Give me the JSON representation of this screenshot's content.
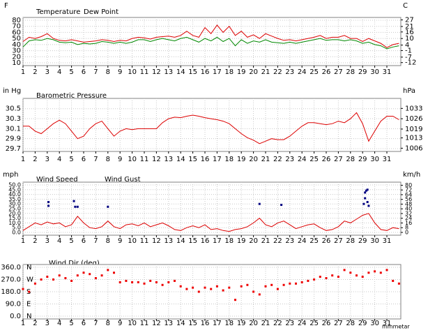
{
  "chart_data": [
    {
      "type": "line",
      "ylabel": "F",
      "y2label": "C",
      "x": [
        1,
        1.5,
        2,
        2.5,
        3,
        3.5,
        4,
        4.5,
        5,
        5.5,
        6,
        6.5,
        7,
        7.5,
        8,
        8.5,
        9,
        9.5,
        10,
        10.5,
        11,
        11.5,
        12,
        12.5,
        13,
        13.5,
        14,
        14.5,
        15,
        15.5,
        16,
        16.5,
        17,
        17.5,
        18,
        18.5,
        19,
        19.5,
        20,
        20.5,
        21,
        21.5,
        22,
        22.5,
        23,
        23.5,
        24,
        24.5,
        25,
        25.5,
        26,
        26.5,
        27,
        27.5,
        28,
        28.5,
        29,
        29.5,
        30,
        30.5,
        31,
        31.5,
        32
      ],
      "series": [
        {
          "name": "Temperature",
          "color": "#dd0000",
          "values": [
            45,
            52,
            50,
            53,
            58,
            50,
            47,
            46,
            48,
            46,
            44,
            45,
            46,
            48,
            47,
            45,
            47,
            46,
            50,
            52,
            51,
            49,
            52,
            53,
            54,
            52,
            55,
            62,
            55,
            52,
            68,
            58,
            72,
            60,
            70,
            55,
            62,
            52,
            56,
            50,
            58,
            54,
            50,
            47,
            48,
            46,
            48,
            50,
            52,
            55,
            50,
            52,
            52,
            55,
            50,
            50,
            45,
            50,
            46,
            42,
            35,
            40,
            42
          ]
        },
        {
          "name": "Dew Point",
          "color": "#008800",
          "values": [
            36,
            46,
            48,
            47,
            50,
            48,
            44,
            43,
            44,
            40,
            42,
            41,
            42,
            45,
            44,
            42,
            44,
            42,
            44,
            48,
            48,
            45,
            48,
            50,
            48,
            46,
            50,
            52,
            48,
            44,
            50,
            46,
            52,
            45,
            50,
            38,
            48,
            42,
            46,
            44,
            48,
            44,
            43,
            42,
            44,
            42,
            44,
            46,
            48,
            50,
            47,
            48,
            48,
            46,
            48,
            46,
            42,
            44,
            40,
            38,
            33,
            36,
            38
          ]
        }
      ],
      "xlim": [
        1,
        32.15
      ],
      "xticks": [
        1,
        2,
        3,
        4,
        5,
        6,
        7,
        8,
        9,
        10,
        11,
        12,
        13,
        14,
        15,
        16,
        17,
        18,
        19,
        20,
        21,
        22,
        23,
        24,
        25,
        26,
        27,
        28,
        29,
        30,
        31
      ],
      "ylim": [
        10,
        80
      ],
      "yticks": [
        80,
        70,
        60,
        50,
        40,
        30,
        20,
        10
      ],
      "y2lim": [
        -12.2,
        26.7
      ],
      "y2ticks": [
        27,
        21,
        16,
        10,
        4,
        -1,
        -7,
        -12
      ],
      "grid": true
    },
    {
      "type": "line",
      "title": "Barometric Pressure",
      "ylabel": "in Hg",
      "y2label": "hPa",
      "x": [
        1,
        1.5,
        2,
        2.5,
        3,
        3.5,
        4,
        4.5,
        5,
        5.5,
        6,
        6.5,
        7,
        7.5,
        8,
        8.5,
        9,
        9.5,
        10,
        10.5,
        11,
        11.5,
        12,
        12.5,
        13,
        13.5,
        14,
        14.5,
        15,
        15.5,
        16,
        16.5,
        17,
        17.5,
        18,
        18.5,
        19,
        19.5,
        20,
        20.5,
        21,
        21.5,
        22,
        22.5,
        23,
        23.5,
        24,
        24.5,
        25,
        25.5,
        26,
        26.5,
        27,
        27.5,
        28,
        28.5,
        29,
        29.5,
        30,
        30.5,
        31,
        31.5,
        32
      ],
      "series": [
        {
          "color": "#dd0000",
          "values": [
            30.15,
            30.15,
            30.05,
            30.0,
            30.1,
            30.2,
            30.27,
            30.2,
            30.05,
            29.9,
            29.95,
            30.1,
            30.2,
            30.25,
            30.1,
            29.95,
            30.05,
            30.1,
            30.08,
            30.1,
            30.1,
            30.1,
            30.1,
            30.22,
            30.3,
            30.33,
            30.32,
            30.35,
            30.37,
            30.35,
            30.32,
            30.3,
            30.28,
            30.25,
            30.2,
            30.1,
            30.0,
            29.92,
            29.87,
            29.8,
            29.85,
            29.9,
            29.88,
            29.88,
            29.95,
            30.05,
            30.15,
            30.22,
            30.22,
            30.2,
            30.18,
            30.2,
            30.25,
            30.22,
            30.3,
            30.42,
            30.2,
            29.85,
            30.05,
            30.25,
            30.35,
            30.35,
            30.28
          ]
        }
      ],
      "xlim": [
        1,
        32.15
      ],
      "xticks": [
        1,
        2,
        3,
        4,
        5,
        6,
        7,
        8,
        9,
        10,
        11,
        12,
        13,
        14,
        15,
        16,
        17,
        18,
        19,
        20,
        21,
        22,
        23,
        24,
        25,
        26,
        27,
        28,
        29,
        30,
        31
      ],
      "ylim": [
        29.7,
        30.65
      ],
      "yticks": [
        30.5,
        30.3,
        30.1,
        29.9,
        29.7
      ],
      "y2lim": [
        1005.7,
        1037.9
      ],
      "y2ticks": [
        1033,
        1026,
        1019,
        1013,
        1006
      ],
      "grid": true
    },
    {
      "type": "line",
      "ylabel": "mph",
      "y2label": "km/h",
      "x": [
        1,
        1.5,
        2,
        2.5,
        3,
        3.5,
        4,
        4.5,
        5,
        5.5,
        6,
        6.5,
        7,
        7.5,
        8,
        8.5,
        9,
        9.5,
        10,
        10.5,
        11,
        11.5,
        12,
        12.5,
        13,
        13.5,
        14,
        14.5,
        15,
        15.5,
        16,
        16.5,
        17,
        17.5,
        18,
        18.5,
        19,
        19.5,
        20,
        20.5,
        21,
        21.5,
        22,
        22.5,
        23,
        23.5,
        24,
        24.5,
        25,
        25.5,
        26,
        26.5,
        27,
        27.5,
        28,
        28.5,
        29,
        29.5,
        30,
        30.5,
        31,
        31.5,
        32
      ],
      "series": [
        {
          "name": "Wind Speed",
          "color": "#dd0000",
          "values": [
            2,
            6,
            10,
            8,
            11,
            9,
            10,
            6,
            8,
            17,
            10,
            5,
            4,
            6,
            12,
            6,
            4,
            8,
            9,
            7,
            10,
            6,
            8,
            10,
            7,
            3,
            2,
            5,
            7,
            5,
            8,
            3,
            4,
            2,
            1,
            3,
            4,
            6,
            10,
            15,
            8,
            6,
            10,
            12,
            8,
            4,
            6,
            8,
            9,
            5,
            2,
            3,
            6,
            12,
            10,
            14,
            18,
            20,
            10,
            3,
            2,
            5,
            4
          ]
        },
        {
          "name": "Wind Gust",
          "color": "#000080",
          "type": "scatter",
          "x": [
            3.1,
            3.1,
            5.2,
            5.3,
            5.5,
            8,
            20.5,
            22.3,
            29.2,
            29.3,
            29.4,
            29.2,
            29.1,
            29.4,
            29.5
          ],
          "values": [
            32,
            28,
            33,
            27,
            27,
            27,
            30,
            29,
            42,
            44,
            45,
            36,
            30,
            32,
            28
          ]
        }
      ],
      "xlim": [
        1,
        32.15
      ],
      "xticks": [
        1,
        2,
        3,
        4,
        5,
        6,
        7,
        8,
        9,
        10,
        11,
        12,
        13,
        14,
        15,
        16,
        17,
        18,
        19,
        20,
        21,
        22,
        23,
        24,
        25,
        26,
        27,
        28,
        29,
        30,
        31
      ],
      "ylim": [
        0,
        50
      ],
      "yticks": [
        {
          "value": 50,
          "label": "50.0"
        },
        {
          "value": 45,
          "label": "45.0"
        },
        {
          "value": 40,
          "label": "40.0"
        },
        {
          "value": 35,
          "label": "35.0"
        },
        {
          "value": 30,
          "label": "30.0"
        },
        {
          "value": 25,
          "label": "25.0"
        },
        {
          "value": 20,
          "label": "20.0"
        },
        {
          "value": 15,
          "label": "15.0"
        },
        {
          "value": 10,
          "label": "10.0"
        },
        {
          "value": 5,
          "label": "5.0"
        },
        {
          "value": 0,
          "label": "0.0"
        }
      ],
      "y2lim": [
        0,
        80.5
      ],
      "y2ticks": [
        80,
        72,
        64,
        56,
        48,
        40,
        32,
        24,
        16,
        8,
        0
      ],
      "grid": true
    },
    {
      "type": "scatter",
      "annotation": "mmmetar",
      "x": [
        1,
        1.5,
        2,
        2.5,
        3,
        3.5,
        4,
        4.5,
        5,
        5.5,
        6,
        6.5,
        7,
        7.5,
        8,
        8.5,
        9,
        9.5,
        10,
        10.5,
        11,
        11.5,
        12,
        12.5,
        13,
        13.5,
        14,
        14.5,
        15,
        15.5,
        16,
        16.5,
        17,
        17.5,
        18,
        18.5,
        19,
        19.5,
        20,
        20.5,
        21,
        21.5,
        22,
        22.5,
        23,
        23.5,
        24,
        24.5,
        25,
        25.5,
        26,
        26.5,
        27,
        27.5,
        28,
        28.5,
        29,
        29.5,
        30,
        30.5,
        31,
        31.5,
        32
      ],
      "series": [
        {
          "name": "Wind Dir (deg)",
          "color": "#ee0000",
          "values": [
            200,
            180,
            240,
            270,
            290,
            270,
            300,
            280,
            260,
            300,
            320,
            310,
            280,
            300,
            340,
            320,
            250,
            260,
            250,
            250,
            240,
            260,
            250,
            230,
            250,
            260,
            220,
            200,
            210,
            180,
            210,
            200,
            220,
            190,
            210,
            120,
            220,
            230,
            180,
            160,
            220,
            230,
            200,
            230,
            240,
            240,
            250,
            260,
            270,
            290,
            280,
            300,
            290,
            340,
            320,
            300,
            290,
            320,
            330,
            320,
            340,
            260,
            240
          ]
        }
      ],
      "xlim": [
        1,
        32.15
      ],
      "xticks": [
        1,
        2,
        3,
        4,
        5,
        6,
        7,
        8,
        9,
        10,
        11,
        12,
        13,
        14,
        15,
        16,
        17,
        18,
        19,
        20,
        21,
        22,
        23,
        24,
        25,
        26,
        27,
        28,
        29,
        30,
        31
      ],
      "ylim": [
        0,
        360
      ],
      "yticks": [
        {
          "value": 360,
          "label": "360.0"
        },
        {
          "value": 270,
          "label": "270.0"
        },
        {
          "value": 180,
          "label": "180.0"
        },
        {
          "value": 90,
          "label": "90.0"
        },
        {
          "value": 0,
          "label": "0.0"
        }
      ],
      "compass_ticks": [
        {
          "value": 360,
          "label": "N"
        },
        {
          "value": 270,
          "label": "W"
        },
        {
          "value": 180,
          "label": "S"
        },
        {
          "value": 90,
          "label": "E"
        },
        {
          "value": 0,
          "label": "N"
        }
      ],
      "grid": true
    }
  ]
}
